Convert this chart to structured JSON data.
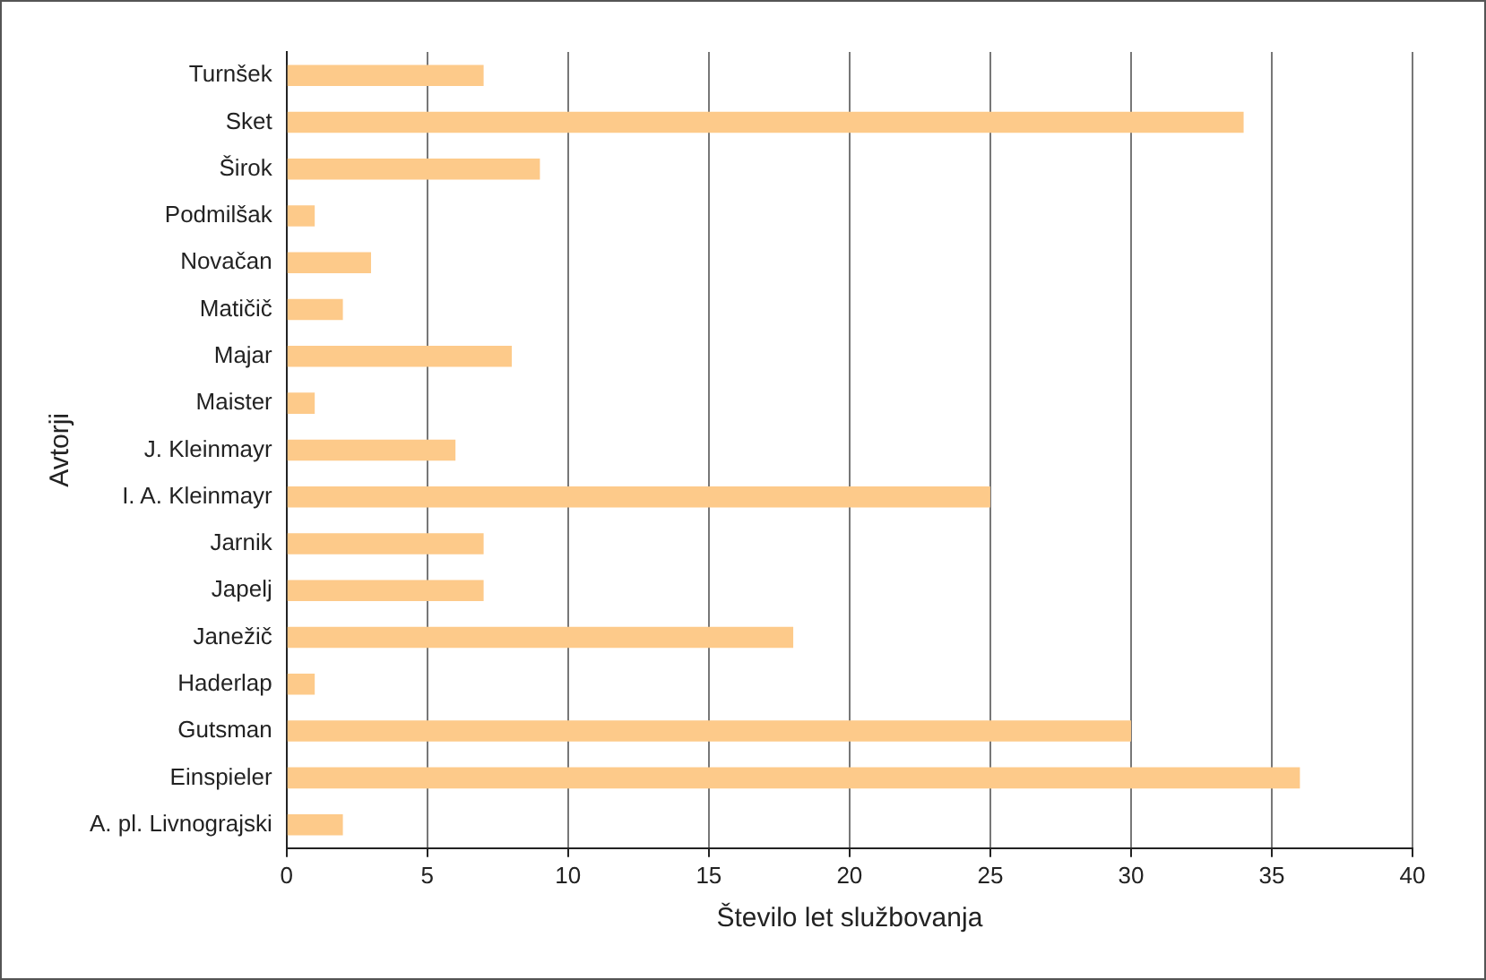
{
  "chart_data": {
    "type": "bar",
    "orientation": "horizontal",
    "xlabel": "Število let službovanja",
    "ylabel": "Avtorji",
    "categories": [
      "Turnšek",
      "Sket",
      "Širok",
      "Podmilšak",
      "Novačan",
      "Matičič",
      "Majar",
      "Maister",
      "J. Kleinmayr",
      "I. A. Kleinmayr",
      "Jarnik",
      "Japelj",
      "Janežič",
      "Haderlap",
      "Gutsman",
      "Einspieler",
      "A. pl. Livnograjski"
    ],
    "values": [
      7,
      34,
      9,
      1,
      3,
      2,
      8,
      1,
      6,
      25,
      7,
      7,
      18,
      1,
      30,
      36,
      2
    ],
    "color": "#fdca8a",
    "xlim": [
      0,
      40
    ],
    "xticks": [
      0,
      5,
      10,
      15,
      20,
      25,
      30,
      35,
      40
    ],
    "grid": "x",
    "legend": false
  }
}
